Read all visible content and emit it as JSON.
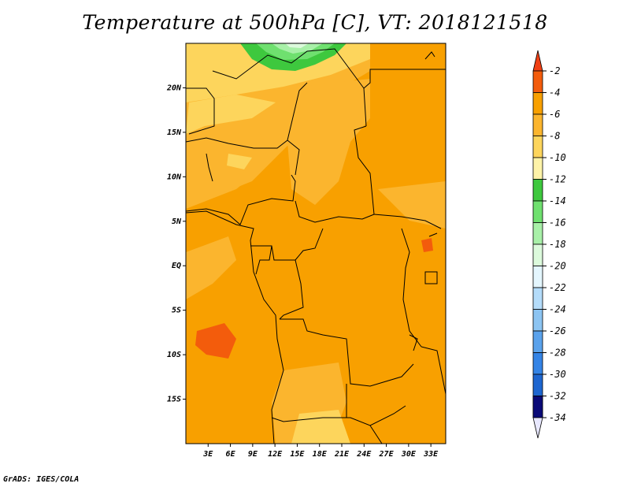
{
  "title": "Temperature at 500hPa [C], VT: 2018121518",
  "footer": "GrADS: IGES/COLA",
  "map": {
    "lon_range": [
      0,
      35
    ],
    "lat_range": [
      -20,
      25
    ],
    "lat_labels": [
      "20N",
      "15N",
      "10N",
      "5N",
      "EQ",
      "5S",
      "10S",
      "15S"
    ],
    "lon_labels": [
      "3E",
      "6E",
      "9E",
      "12E",
      "15E",
      "18E",
      "21E",
      "24E",
      "27E",
      "30E",
      "33E"
    ]
  },
  "colorbar": {
    "labels": [
      "-2",
      "-4",
      "-6",
      "-8",
      "-10",
      "-12",
      "-14",
      "-16",
      "-18",
      "-20",
      "-22",
      "-24",
      "-26",
      "-28",
      "-30",
      "-32",
      "-34"
    ],
    "colors": [
      "#f35c0c",
      "#f8a000",
      "#fbb52e",
      "#fdd55c",
      "#fef3a8",
      "#3ec83e",
      "#6fe06f",
      "#a8f0a8",
      "#dcfadc",
      "#e4f6fe",
      "#b4dcfa",
      "#8cc4f2",
      "#5aa2ec",
      "#3484e6",
      "#1e66d0",
      "#0e44aa",
      "#0a0a78"
    ],
    "top_color": "#f04014",
    "bottom_color": "#e8e8ff"
  }
}
